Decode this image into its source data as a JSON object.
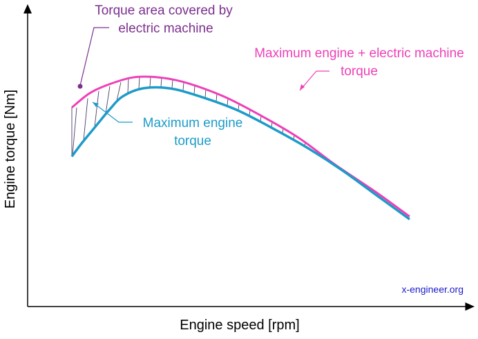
{
  "chart_data": {
    "type": "line",
    "xlabel": "Engine speed [rpm]",
    "ylabel": "Engine torque [Nm]",
    "grid": false,
    "legend": "none",
    "series": [
      {
        "name": "Maximum engine + electric machine torque",
        "color": "#ee3fb7",
        "points": [
          [
            0.0,
            0.73
          ],
          [
            0.05,
            0.78
          ],
          [
            0.1,
            0.81
          ],
          [
            0.18,
            0.84
          ],
          [
            0.26,
            0.84
          ],
          [
            0.34,
            0.82
          ],
          [
            0.45,
            0.77
          ],
          [
            0.56,
            0.7
          ],
          [
            0.67,
            0.62
          ],
          [
            0.78,
            0.52
          ],
          [
            0.9,
            0.42
          ],
          [
            1.0,
            0.33
          ]
        ]
      },
      {
        "name": "Maximum engine torque",
        "color": "#1c9bc9",
        "points": [
          [
            0.0,
            0.55
          ],
          [
            0.03,
            0.6
          ],
          [
            0.07,
            0.66
          ],
          [
            0.11,
            0.72
          ],
          [
            0.15,
            0.77
          ],
          [
            0.21,
            0.8
          ],
          [
            0.29,
            0.8
          ],
          [
            0.38,
            0.77
          ],
          [
            0.49,
            0.72
          ],
          [
            0.6,
            0.65
          ],
          [
            0.7,
            0.58
          ],
          [
            0.8,
            0.5
          ],
          [
            0.9,
            0.41
          ],
          [
            1.0,
            0.32
          ]
        ]
      }
    ],
    "annotations": [
      {
        "lines": [
          "Torque area covered by",
          "electric machine"
        ],
        "color": "#7b2f8e"
      },
      {
        "lines": [
          "Maximum engine + electric machine",
          "torque"
        ],
        "color": "#ee3fb7"
      },
      {
        "lines": [
          "Maximum engine",
          "torque"
        ],
        "color": "#1c9bc9"
      }
    ],
    "watermark": "x-engineer.org"
  }
}
